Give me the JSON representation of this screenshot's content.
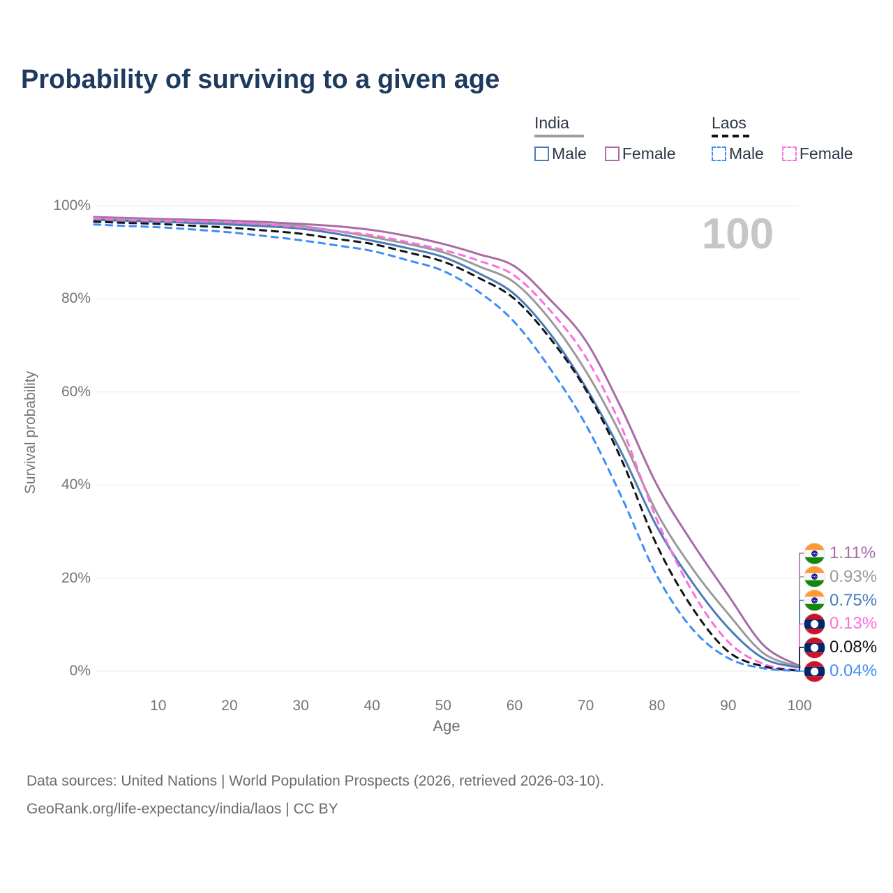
{
  "title": "Probability of surviving to a given age",
  "legend": {
    "groups": [
      {
        "country": "India",
        "line_style": "solid",
        "underline_color": "#9e9e9e",
        "items": [
          {
            "label": "Male",
            "color": "#4a7cb9",
            "checked": false
          },
          {
            "label": "Female",
            "color": "#a86ba6",
            "checked": false
          }
        ]
      },
      {
        "country": "Laos",
        "line_style": "dashed",
        "underline_color": "#111111",
        "items": [
          {
            "label": "Male",
            "color": "#3e8ef7",
            "checked": false
          },
          {
            "label": "Female",
            "color": "#fb6fe0",
            "checked": false
          }
        ]
      }
    ]
  },
  "chart_data": {
    "type": "line",
    "title": "Probability of surviving to a given age",
    "xlabel": "Age",
    "ylabel": "Survival probability",
    "x_range": [
      0,
      100
    ],
    "y_range": [
      0,
      100
    ],
    "grid": true,
    "x_ticks": [
      10,
      20,
      30,
      40,
      50,
      60,
      70,
      80,
      90,
      100
    ],
    "y_ticks": [
      "0%",
      "20%",
      "40%",
      "60%",
      "80%",
      "100%"
    ],
    "age_indicator": "100",
    "ages": [
      1,
      5,
      10,
      15,
      20,
      25,
      30,
      35,
      40,
      45,
      50,
      55,
      60,
      65,
      70,
      75,
      80,
      85,
      90,
      95,
      100
    ],
    "series": [
      {
        "name": "India Female",
        "country": "india",
        "style": "solid",
        "color": "#a86ba6",
        "end_label": "1.11%",
        "values": [
          97.6,
          97.4,
          97.2,
          97.0,
          96.8,
          96.5,
          96.1,
          95.6,
          94.8,
          93.5,
          91.8,
          89.6,
          87.0,
          79.8,
          71.0,
          56.5,
          40.0,
          27.5,
          16.3,
          5.5,
          1.11
        ]
      },
      {
        "name": "India (all)",
        "country": "india",
        "style": "solid",
        "color": "#9a9a9a",
        "end_label": "0.93%",
        "values": [
          97.3,
          97.1,
          96.9,
          96.65,
          96.4,
          96.0,
          95.6,
          94.6,
          93.3,
          91.8,
          90.0,
          87.0,
          83.5,
          75.5,
          64.5,
          50.5,
          34.0,
          22.0,
          12.3,
          3.8,
          0.93
        ]
      },
      {
        "name": "India Male",
        "country": "india",
        "style": "solid",
        "color": "#4a7cb9",
        "end_label": "0.75%",
        "values": [
          97.0,
          96.8,
          96.6,
          96.3,
          96.0,
          95.6,
          95.1,
          94.0,
          92.5,
          90.9,
          89.0,
          85.5,
          81.0,
          72.5,
          61.0,
          47.0,
          31.0,
          19.0,
          9.3,
          2.7,
          0.75
        ]
      },
      {
        "name": "Laos Female",
        "country": "laos",
        "style": "dashed",
        "color": "#fb6fe0",
        "end_label": "0.13%",
        "values": [
          97.3,
          97.0,
          96.8,
          96.65,
          96.5,
          96.0,
          95.4,
          94.6,
          93.7,
          92.2,
          90.5,
          88.2,
          85.0,
          77.5,
          67.5,
          52.5,
          32.5,
          17.0,
          6.3,
          1.5,
          0.13
        ]
      },
      {
        "name": "Laos (all)",
        "country": "laos",
        "style": "dashed",
        "color": "#141414",
        "end_label": "0.08%",
        "values": [
          96.6,
          96.35,
          96.1,
          95.7,
          95.3,
          94.7,
          94.0,
          92.9,
          91.8,
          90.0,
          88.0,
          84.5,
          80.0,
          71.5,
          60.5,
          45.5,
          27.0,
          13.5,
          4.2,
          1.0,
          0.08
        ]
      },
      {
        "name": "Laos Male",
        "country": "laos",
        "style": "dashed",
        "color": "#3e8ef7",
        "end_label": "0.04%",
        "values": [
          96.0,
          95.7,
          95.4,
          94.9,
          94.3,
          93.5,
          92.6,
          91.5,
          90.3,
          88.3,
          86.0,
          81.5,
          75.0,
          65.0,
          53.0,
          37.5,
          20.5,
          9.0,
          2.8,
          0.6,
          0.04
        ]
      }
    ]
  },
  "footer": {
    "line1": "Data sources: United Nations | World Population Prospects (2026, retrieved 2026-03-10).",
    "line2": "GeoRank.org/life-expectancy/india/laos | CC BY"
  }
}
